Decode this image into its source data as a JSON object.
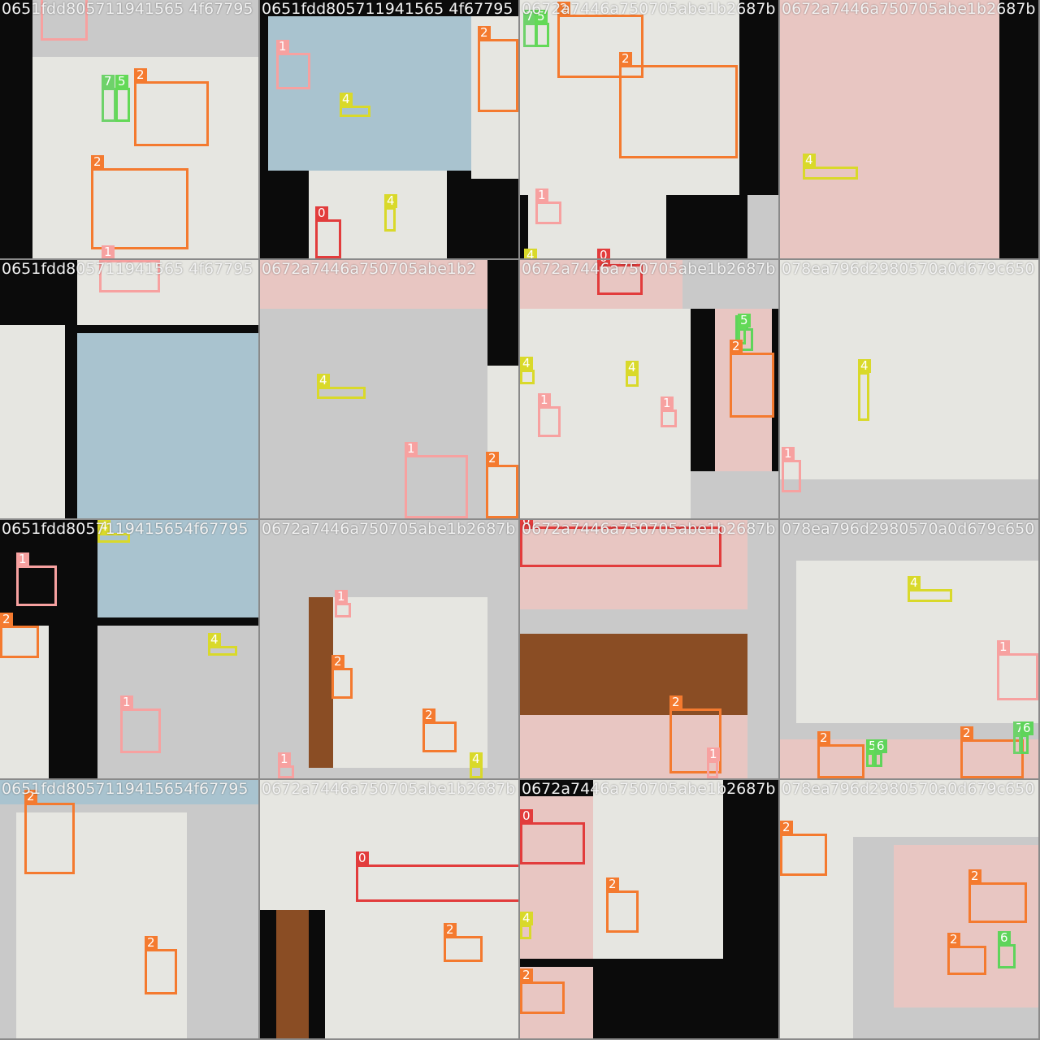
{
  "window_title": "",
  "class_colors": {
    "0": "#e23c3c",
    "1": "#f7a1a0",
    "2": "#f47a2f",
    "4": "#d9d92a",
    "5": "#63d957",
    "6": "#5fd45b",
    "7": "#6ed26a"
  },
  "tiles": [
    {
      "title": "0651fdd805711941565 4f67795",
      "labels": [
        "1",
        "2",
        "7",
        "5",
        "2",
        "1"
      ]
    },
    {
      "title": "0651fdd805711941565 4f67795",
      "labels": [
        "1",
        "4",
        "2",
        "4",
        "0"
      ]
    },
    {
      "title": "0672a7446a750705abe1b2687b",
      "labels": [
        "7",
        "5",
        "2",
        "2",
        "1",
        "4",
        "0"
      ]
    },
    {
      "title": "0672a7446a750705abe1b2687b",
      "labels": [
        "4"
      ]
    },
    {
      "title": "0651fdd805711941565 4f67795",
      "labels": [
        "1"
      ]
    },
    {
      "title": "0672a7446a750705abe1b2",
      "labels": [
        "4",
        "1",
        "2"
      ]
    },
    {
      "title": "0672a7446a750705abe1b2687b",
      "labels": [
        "0",
        "4",
        "4",
        "1",
        "1",
        "6",
        "5",
        "2"
      ]
    },
    {
      "title": "078ea796d2980570a0d679c650",
      "labels": [
        "4",
        "1"
      ]
    },
    {
      "title": "0651fdd8057119415654f67795",
      "labels": [
        "4",
        "1",
        "2",
        "4",
        "1"
      ]
    },
    {
      "title": "0672a7446a750705abe1b2687b",
      "labels": [
        "1",
        "2",
        "2",
        "1",
        "4"
      ]
    },
    {
      "title": "0672a7446a750705abe1b2687b",
      "labels": [
        "0",
        "2",
        "1"
      ]
    },
    {
      "title": "078ea796d2980570a0d679c650",
      "labels": [
        "4",
        "1",
        "2",
        "5",
        "6",
        "2",
        "7",
        "6"
      ]
    },
    {
      "title": "0651fdd8057119415654f67795",
      "labels": [
        "2",
        "2"
      ]
    },
    {
      "title": "0672a7446a750705abe1b2687b",
      "labels": [
        "0",
        "2"
      ]
    },
    {
      "title": "0672a7446a750705abe1b2687b",
      "labels": [
        "0",
        "2",
        "4",
        "2"
      ]
    },
    {
      "title": "078ea796d2980570a0d679c650",
      "labels": [
        "2",
        "2",
        "2",
        "6"
      ]
    }
  ]
}
